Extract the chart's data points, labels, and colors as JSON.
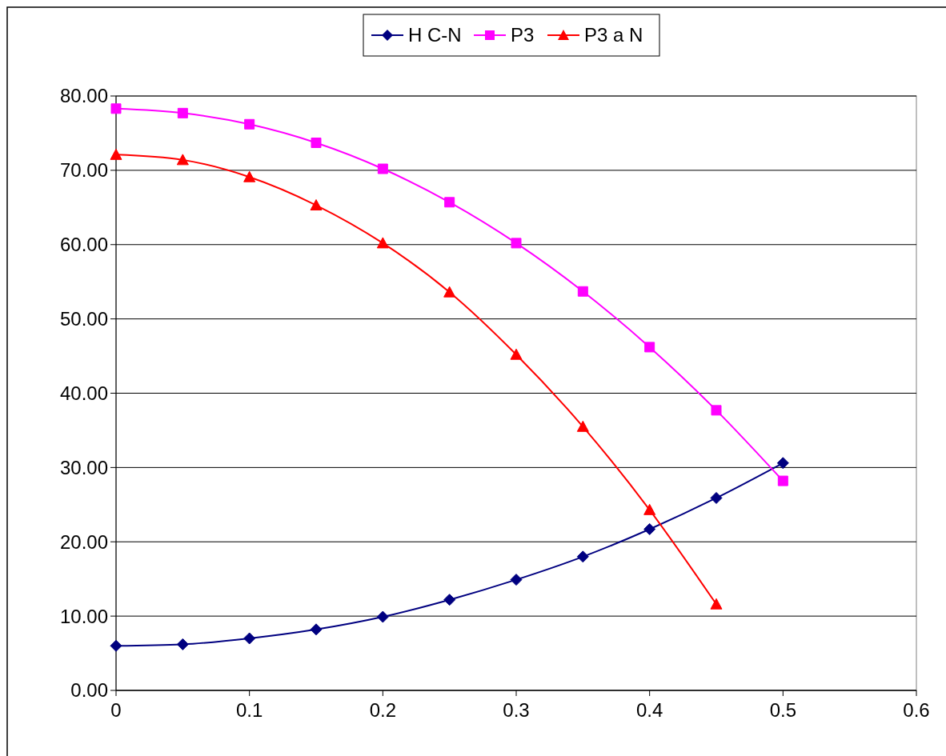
{
  "chart_data": {
    "type": "line",
    "x": [
      0,
      0.05,
      0.1,
      0.15,
      0.2,
      0.25,
      0.3,
      0.35,
      0.4,
      0.45,
      0.5
    ],
    "series": [
      {
        "name": "H C-N",
        "color": "#000080",
        "marker": "diamond",
        "values": [
          6.0,
          6.2,
          7.0,
          8.2,
          9.9,
          12.2,
          14.9,
          18.0,
          21.7,
          25.9,
          30.6
        ]
      },
      {
        "name": "P3",
        "color": "#ff00ff",
        "marker": "square",
        "values": [
          78.3,
          77.7,
          76.2,
          73.7,
          70.2,
          65.7,
          60.2,
          53.7,
          46.2,
          37.7,
          28.2
        ]
      },
      {
        "name": "P3 a N",
        "color": "#ff0000",
        "marker": "triangle",
        "values": [
          72.1,
          71.4,
          69.1,
          65.3,
          60.2,
          53.6,
          45.2,
          35.5,
          24.3,
          11.6,
          null
        ]
      }
    ],
    "xlim": [
      0,
      0.6
    ],
    "xticks": [
      0,
      0.1,
      0.2,
      0.3,
      0.4,
      0.5,
      0.6
    ],
    "ylim": [
      0,
      80
    ],
    "yticks": [
      {
        "value": 0,
        "label": "0.00"
      },
      {
        "value": 10,
        "label": "10.00"
      },
      {
        "value": 20,
        "label": "20.00"
      },
      {
        "value": 30,
        "label": "30.00"
      },
      {
        "value": 40,
        "label": "40.00"
      },
      {
        "value": 50,
        "label": "50.00"
      },
      {
        "value": 60,
        "label": "60.00"
      },
      {
        "value": 70,
        "label": "70.00"
      },
      {
        "value": 80,
        "label": "80.00"
      }
    ],
    "grid": "y",
    "legend": "top",
    "line_style": "solid"
  }
}
